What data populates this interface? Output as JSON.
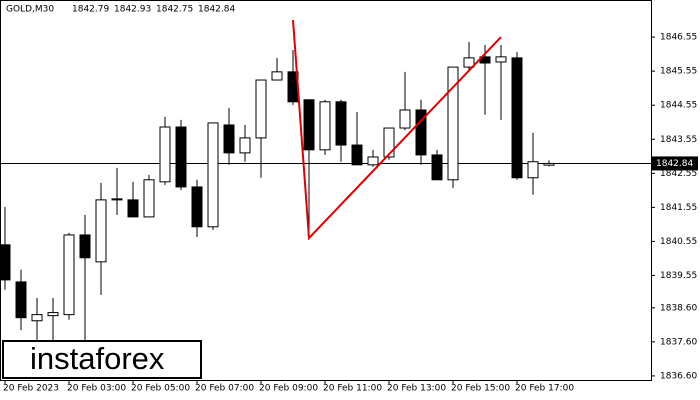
{
  "chart_data": {
    "type": "candlestick",
    "symbol": "GOLD,M30",
    "header_values": [
      1842.79,
      1842.93,
      1842.75,
      1842.84
    ],
    "categories": [
      "20 Feb 2023",
      null,
      null,
      null,
      "20 Feb 03:00",
      null,
      null,
      null,
      "20 Feb 05:00",
      null,
      null,
      null,
      "20 Feb 07:00",
      null,
      null,
      null,
      "20 Feb 09:00",
      null,
      null,
      null,
      "20 Feb 11:00",
      null,
      null,
      null,
      "20 Feb 13:00",
      null,
      null,
      null,
      "20 Feb 15:00",
      null,
      null,
      null,
      "20 Feb 17:00",
      null,
      null
    ],
    "open": [
      1840.45,
      1839.36,
      1838.22,
      1838.37,
      1838.4,
      1840.74,
      1839.95,
      1841.77,
      1841.77,
      1841.27,
      1842.3,
      1843.91,
      1842.15,
      1840.98,
      1843.97,
      1843.15,
      1843.59,
      1845.29,
      1845.53,
      1844.71,
      1843.24,
      1844.65,
      1843.38,
      1842.8,
      1843.03,
      1843.88,
      1844.41,
      1843.09,
      1842.36,
      1845.67,
      1845.97,
      1845.82,
      1845.94,
      1842.42,
      1842.79
    ],
    "high": [
      1841.56,
      1839.72,
      1838.89,
      1838.89,
      1840.8,
      1841.33,
      1842.27,
      1842.71,
      1842.3,
      1842.5,
      1844.21,
      1844.12,
      1842.36,
      1844.03,
      1844.47,
      1843.97,
      1845.29,
      1845.94,
      1846.17,
      1844.71,
      1844.71,
      1844.71,
      1844.35,
      1843.24,
      1843.88,
      1845.53,
      1844.71,
      1843.24,
      1845.67,
      1846.41,
      1846.32,
      1846.32,
      1846.11,
      1843.74,
      1842.93
    ],
    "low": [
      1839.13,
      1837.95,
      1837.66,
      1837.51,
      1838.25,
      1837.51,
      1838.98,
      1841.33,
      1841.27,
      1841.27,
      1842.21,
      1842.06,
      1840.68,
      1840.89,
      1842.8,
      1842.89,
      1842.42,
      1845.29,
      1844.56,
      1840.65,
      1843.09,
      1842.89,
      1842.8,
      1842.74,
      1842.95,
      1843.82,
      1842.8,
      1842.36,
      1842.12,
      1845.59,
      1844.27,
      1844.12,
      1842.36,
      1841.92,
      1842.75
    ],
    "close": [
      1839.42,
      1838.31,
      1838.4,
      1838.46,
      1840.74,
      1840.07,
      1841.77,
      1841.8,
      1841.27,
      1842.36,
      1843.91,
      1842.15,
      1840.98,
      1844.03,
      1843.15,
      1843.59,
      1845.29,
      1845.53,
      1844.65,
      1843.24,
      1844.65,
      1843.38,
      1842.8,
      1843.03,
      1843.88,
      1844.41,
      1843.09,
      1842.36,
      1845.67,
      1845.94,
      1845.79,
      1845.97,
      1842.42,
      1842.89,
      1842.84
    ],
    "up_color": "#ffffff",
    "down_color": "#000000",
    "current_price": 1842.84,
    "pattern_x": [
      18,
      19,
      31
    ],
    "pattern_y": [
      1847.05,
      1840.65,
      1846.55
    ],
    "pattern_color": "#e00000",
    "ylim": [
      1836.48,
      1847.64
    ],
    "yticks": [
      1846.55,
      1845.55,
      1844.55,
      1843.55,
      1842.55,
      1841.55,
      1840.55,
      1839.55,
      {
        "value": 1838.6,
        "label": "1838.60"
      },
      {
        "value": 1837.6,
        "label": "1837.60"
      },
      {
        "value": 1836.6,
        "label": "1836.60"
      }
    ],
    "watermark": "instaforex"
  }
}
